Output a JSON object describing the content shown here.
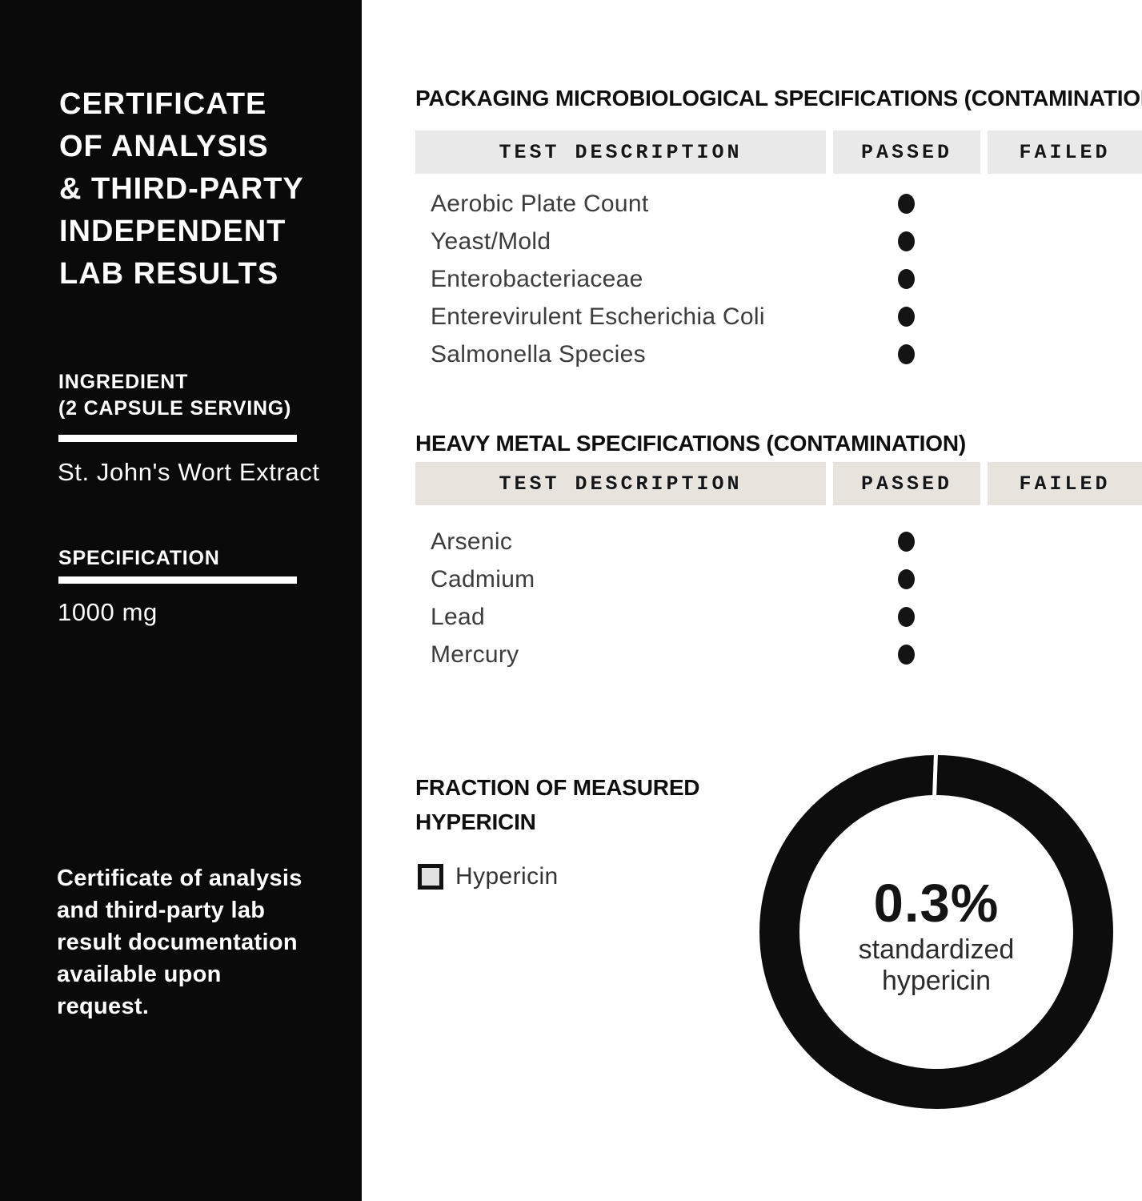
{
  "sidebar": {
    "title_lines": [
      "CERTIFICATE",
      "OF ANALYSIS",
      "& THIRD-PARTY",
      "INDEPENDENT",
      "LAB RESULTS"
    ],
    "ingredient": {
      "label_line1": "INGREDIENT",
      "label_line2": "(2 CAPSULE SERVING)",
      "value": "St. John's Wort Extract"
    },
    "specification": {
      "label": "SPECIFICATION",
      "value": "1000 mg"
    },
    "note_lines": [
      "Certificate of analysis",
      "and third-party lab",
      "result documentation",
      "available upon",
      "request."
    ]
  },
  "tables": [
    {
      "heading": "PACKAGING MICROBIOLOGICAL SPECIFICATIONS (CONTAMINATION)",
      "columns": [
        "TEST DESCRIPTION",
        "PASSED",
        "FAILED"
      ],
      "rows": [
        {
          "test": "Aerobic Plate Count",
          "result": "passed"
        },
        {
          "test": "Yeast/Mold",
          "result": "passed"
        },
        {
          "test": "Enterobacteriaceae",
          "result": "passed"
        },
        {
          "test": "Enterevirulent Escherichia Coli",
          "result": "passed"
        },
        {
          "test": "Salmonella Species",
          "result": "passed"
        }
      ]
    },
    {
      "heading": "HEAVY METAL SPECIFICATIONS (CONTAMINATION)",
      "columns": [
        "TEST DESCRIPTION",
        "PASSED",
        "FAILED"
      ],
      "rows": [
        {
          "test": "Arsenic",
          "result": "passed"
        },
        {
          "test": "Cadmium",
          "result": "passed"
        },
        {
          "test": "Lead",
          "result": "passed"
        },
        {
          "test": "Mercury",
          "result": "passed"
        }
      ]
    }
  ],
  "fraction": {
    "heading_lines": [
      "FRACTION OF MEASURED",
      "HYPERICIN"
    ],
    "legend_label": "Hypericin",
    "center_value": "0.3%",
    "center_sub_lines": [
      "standardized",
      "hypericin"
    ]
  },
  "chart_data": {
    "type": "pie",
    "donut": true,
    "title": "FRACTION OF MEASURED HYPERICIN",
    "slices": [
      {
        "label": "Hypericin",
        "value": 100,
        "color": "#0d0d0d"
      }
    ],
    "center_label": "0.3%",
    "center_sublabel": "standardized hypericin",
    "legend_position": "left-of-chart",
    "legend_entries": [
      "Hypericin"
    ]
  },
  "colors": {
    "sidebar_bg": "#0a0a0a",
    "sidebar_text": "#ffffff",
    "table1_header_bg": "#e9e9ea",
    "table2_header_bg": "#e8e3dc",
    "heading_text": "#0f0f0f",
    "row_text": "#3c3c3c",
    "result_dot": "#141414",
    "donut_ring": "#0d0d0d",
    "legend_swatch_fill": "#e2e2e2",
    "legend_swatch_border": "#121212"
  }
}
